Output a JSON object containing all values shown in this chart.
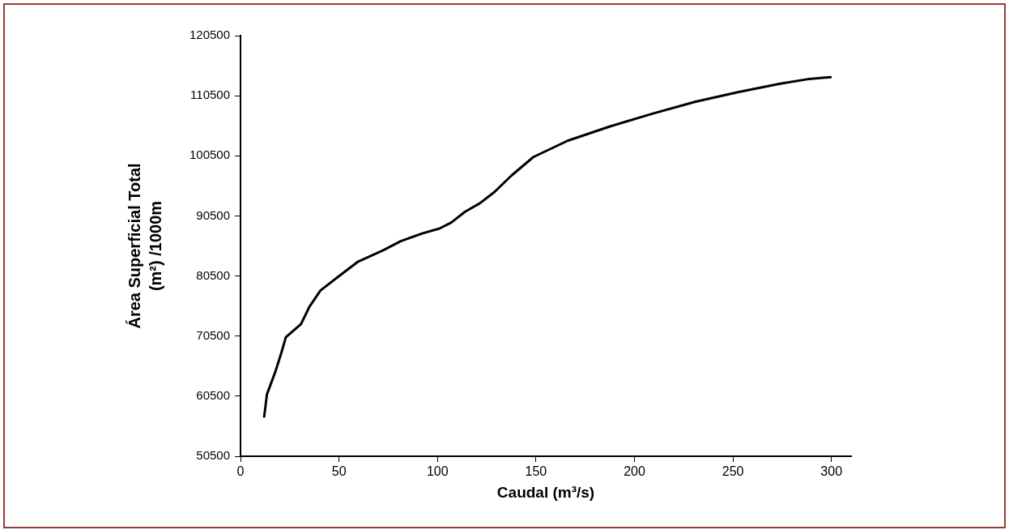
{
  "chart_data": {
    "type": "line",
    "xlabel": "Caudal (m³/s)",
    "ylabel": "Área Superficial Total\n(m²) /1000m",
    "xlim": [
      0,
      310
    ],
    "xticks": [
      0,
      50,
      100,
      150,
      200,
      250,
      300
    ],
    "ylim": [
      50500,
      120500
    ],
    "yticks": [
      50500,
      60500,
      70500,
      80500,
      90500,
      100500,
      110500,
      120500
    ],
    "grid": false,
    "legend": false,
    "marker": "none",
    "line_style": "solid",
    "series": [
      {
        "color": "#000000",
        "x": [
          12,
          13.4,
          17.7,
          20.6,
          23,
          30.7,
          35,
          40.6,
          49.3,
          59.7,
          72.6,
          81.3,
          92.5,
          101,
          107,
          114,
          121.5,
          129,
          137.5,
          148.7,
          166,
          187.6,
          209,
          231,
          252.5,
          274,
          288.8,
          299.6
        ],
        "values": [
          57100,
          60800,
          64600,
          67600,
          70300,
          72500,
          75400,
          78100,
          80300,
          82900,
          84800,
          86300,
          87600,
          88400,
          89400,
          91200,
          92600,
          94500,
          97200,
          100300,
          103000,
          105400,
          107500,
          109500,
          111100,
          112500,
          113300,
          113600
        ]
      }
    ]
  }
}
